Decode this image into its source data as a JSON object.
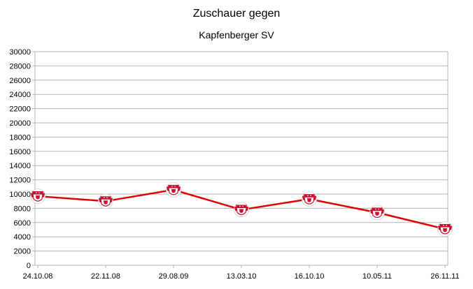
{
  "chart_data": {
    "type": "line",
    "title": "Zuschauer gegen",
    "subtitle": "Kapfenberger SV",
    "xlabel": "",
    "ylabel": "",
    "categories": [
      "24.10.08",
      "22.11.08",
      "29.08.09",
      "13.03.10",
      "16.10.10",
      "10.05.11",
      "26.11.11"
    ],
    "series": [
      {
        "values": [
          9700,
          9000,
          10600,
          7800,
          9300,
          7400,
          5100
        ]
      }
    ],
    "ylim": [
      0,
      30000
    ],
    "ytick_step": 2000,
    "grid": true,
    "legend": "none",
    "colors": {
      "line": "#e00000",
      "grid": "#b3b3b3",
      "axis": "#b3b3b3"
    },
    "marker_icon": "club-crest-icon"
  }
}
